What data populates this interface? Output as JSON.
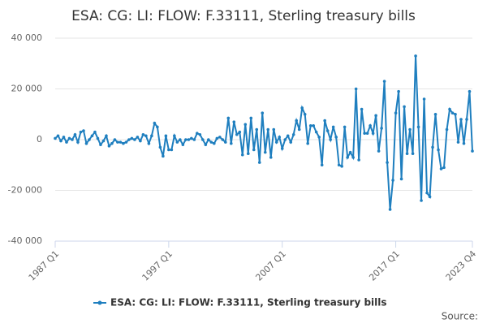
{
  "chart_data": {
    "type": "line",
    "title": "ESA: CG: LI: FLOW: F.33111, Sterling treasury bills",
    "source": "Source:",
    "categories": [
      "1987 Q1",
      null,
      null,
      null,
      null,
      null,
      null,
      null,
      null,
      null,
      null,
      null,
      null,
      null,
      null,
      null,
      null,
      null,
      null,
      null,
      null,
      null,
      null,
      null,
      null,
      null,
      null,
      null,
      null,
      null,
      null,
      null,
      null,
      null,
      null,
      null,
      null,
      null,
      null,
      null,
      "1997 Q1",
      null,
      null,
      null,
      null,
      null,
      null,
      null,
      null,
      null,
      null,
      null,
      null,
      null,
      null,
      null,
      null,
      null,
      null,
      null,
      null,
      null,
      null,
      null,
      null,
      null,
      null,
      null,
      null,
      null,
      null,
      null,
      null,
      null,
      null,
      null,
      null,
      null,
      null,
      null,
      "2007 Q1",
      null,
      null,
      null,
      null,
      null,
      null,
      null,
      null,
      null,
      null,
      null,
      null,
      null,
      null,
      null,
      null,
      null,
      null,
      null,
      null,
      null,
      null,
      null,
      null,
      null,
      null,
      null,
      null,
      null,
      null,
      null,
      null,
      null,
      null,
      null,
      null,
      null,
      null,
      null,
      "2017 Q1",
      null,
      null,
      null,
      null,
      null,
      null,
      null,
      null,
      null,
      null,
      null,
      null,
      null,
      null,
      null,
      null,
      null,
      null,
      null,
      null,
      null,
      null,
      null,
      null,
      null,
      null,
      "2023 Q4"
    ],
    "series": [
      {
        "name": "ESA: CG: LI: FLOW: F.33111, Sterling treasury bills",
        "color": "#1f7fbf",
        "values": [
          500,
          1500,
          -500,
          1000,
          -1000,
          500,
          0,
          2000,
          -1000,
          3000,
          3500,
          -1500,
          0,
          1500,
          3000,
          500,
          -2000,
          -500,
          1500,
          -2500,
          -1500,
          0,
          -1000,
          -1000,
          -1500,
          -1000,
          0,
          500,
          0,
          1000,
          -500,
          2000,
          1500,
          -1500,
          1500,
          6500,
          5000,
          -3000,
          -6500,
          1500,
          -4000,
          -4000,
          1500,
          -1000,
          0,
          -2000,
          0,
          0,
          500,
          0,
          2500,
          2000,
          0,
          -2000,
          0,
          -1000,
          -1500,
          500,
          1000,
          0,
          -1000,
          8500,
          -1500,
          7000,
          2000,
          3000,
          -6000,
          6000,
          -5500,
          8500,
          -4000,
          4000,
          -9000,
          10500,
          -5000,
          4000,
          -7000,
          4000,
          -1000,
          1000,
          -3500,
          0,
          1500,
          -1000,
          2000,
          7500,
          4000,
          12500,
          10000,
          -1500,
          5500,
          5500,
          3000,
          1000,
          -10000,
          7500,
          3500,
          0,
          5000,
          1000,
          -10000,
          -10500,
          5000,
          -7000,
          -5000,
          -7000,
          20000,
          -8000,
          12000,
          2500,
          2500,
          5500,
          2500,
          9500,
          -4500,
          4500,
          23000,
          -9000,
          -27500,
          -16000,
          10500,
          19000,
          -15500,
          13000,
          -5500,
          4000,
          -5500,
          33000,
          5000,
          -24000,
          16000,
          -21000,
          -22500,
          -3000,
          10000,
          -4000,
          -11500,
          -11000,
          4000,
          12000,
          10500,
          10000,
          -1000,
          8000,
          -1500,
          8000,
          19000,
          -4500
        ]
      }
    ],
    "ylim": [
      -40000,
      40000
    ],
    "yticks": [
      {
        "value": -40000,
        "label": "-40 000"
      },
      {
        "value": -20000,
        "label": "-20 000"
      },
      0,
      {
        "value": 20000,
        "label": "20 000"
      },
      {
        "value": 40000,
        "label": "40 000"
      }
    ],
    "grid": true
  }
}
